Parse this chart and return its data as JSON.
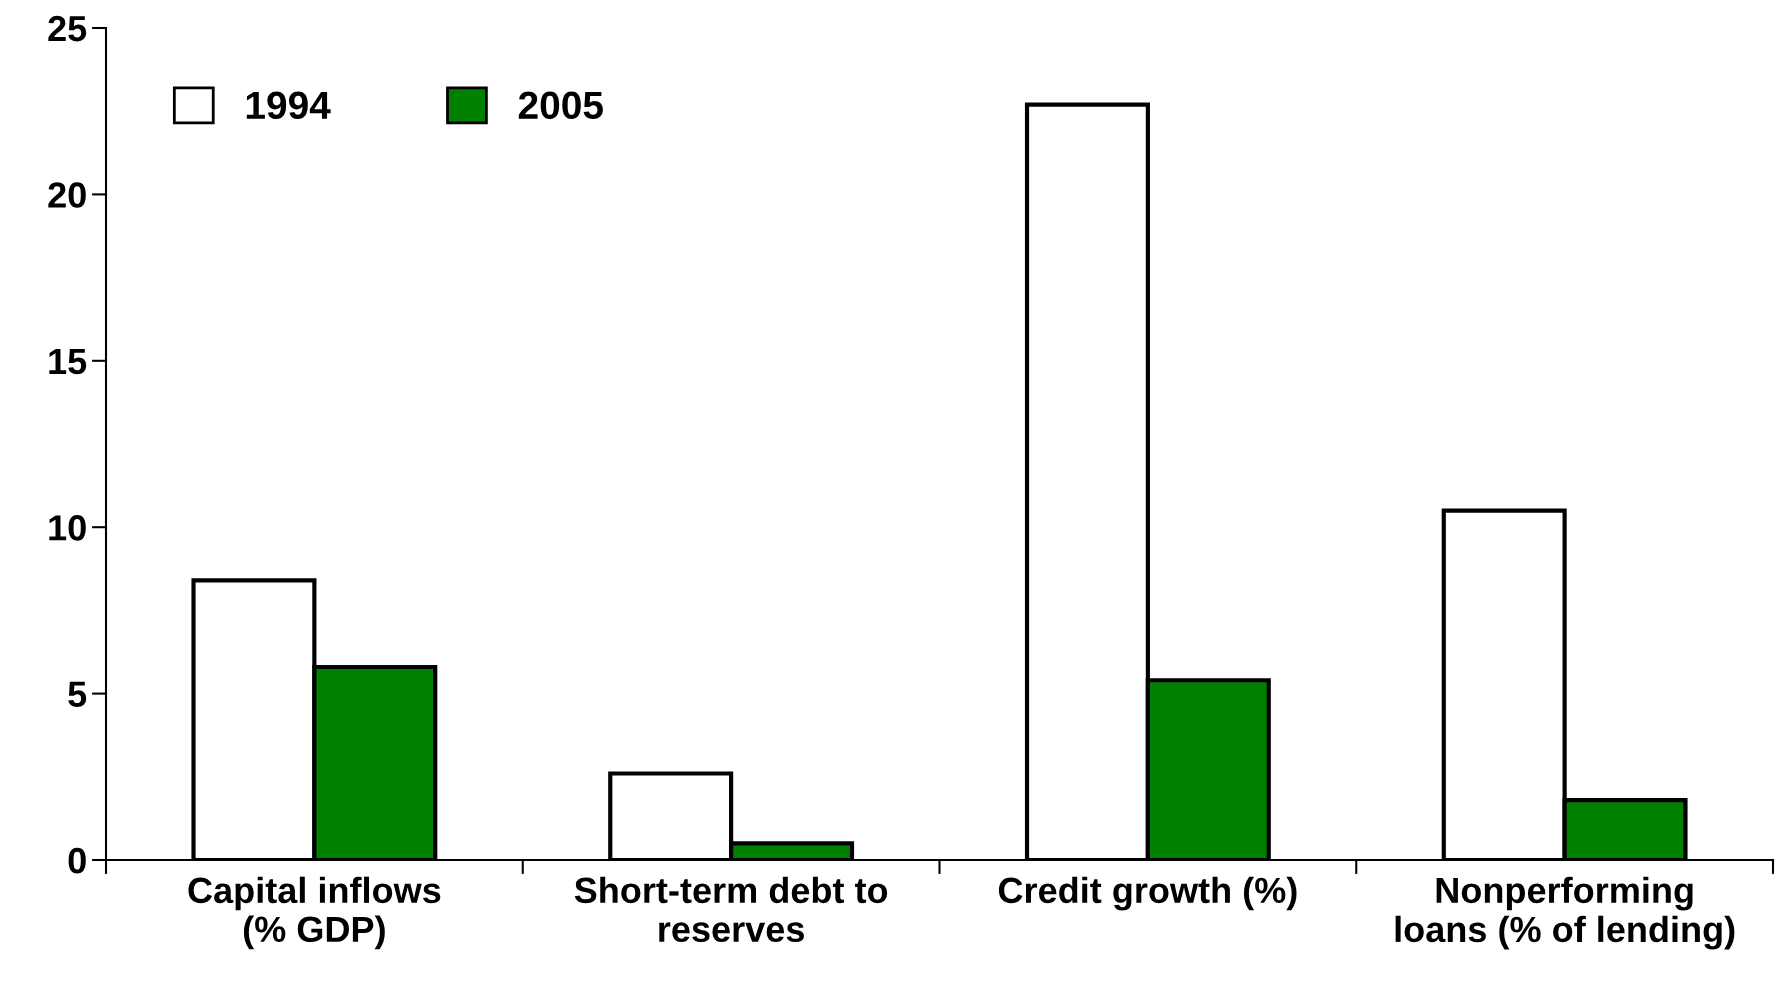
{
  "chart_data": {
    "type": "bar",
    "categories": [
      "Capital inflows\n(% GDP)",
      "Short-term debt to\nreserves",
      "Credit growth (%)",
      "Nonperforming\nloans (% of lending)"
    ],
    "series": [
      {
        "name": "1994",
        "color": "#ffffff",
        "values": [
          8.4,
          2.6,
          22.7,
          10.5
        ]
      },
      {
        "name": "2005",
        "color": "#008000",
        "values": [
          5.8,
          0.5,
          5.4,
          1.8
        ]
      }
    ],
    "ylim": [
      0,
      25
    ],
    "yticks": [
      0,
      5,
      10,
      15,
      20,
      25
    ],
    "legend": "top left",
    "grid": false
  }
}
